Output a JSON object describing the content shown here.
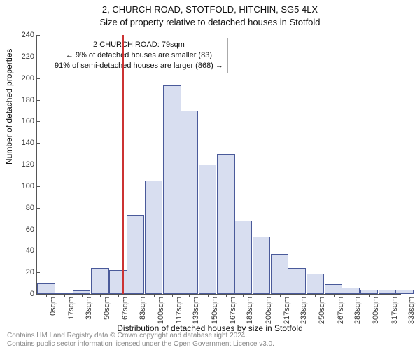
{
  "title_line1": "2, CHURCH ROAD, STOTFOLD, HITCHIN, SG5 4LX",
  "title_line2": "Size of property relative to detached houses in Stotfold",
  "histogram": {
    "type": "histogram",
    "ylabel": "Number of detached properties",
    "xlabel": "Distribution of detached houses by size in Stotfold",
    "ylim": [
      0,
      240
    ],
    "ytick_step": 20,
    "xtick_step_sqm": 16.65,
    "xlim_sqm": [
      0,
      338
    ],
    "bar_fill": "#d8def0",
    "bar_border": "#4a5a9a",
    "background": "#ffffff",
    "axis_color": "#555555",
    "tick_fontsize": 11,
    "label_fontsize": 12,
    "title_fontsize": 13,
    "bars": [
      {
        "center_sqm": 0,
        "label": "0sqm",
        "value": 10
      },
      {
        "center_sqm": 17,
        "label": "17sqm",
        "value": 1
      },
      {
        "center_sqm": 33,
        "label": "33sqm",
        "value": 3
      },
      {
        "center_sqm": 50,
        "label": "50sqm",
        "value": 24
      },
      {
        "center_sqm": 67,
        "label": "67sqm",
        "value": 22
      },
      {
        "center_sqm": 83,
        "label": "83sqm",
        "value": 73
      },
      {
        "center_sqm": 100,
        "label": "100sqm",
        "value": 105
      },
      {
        "center_sqm": 117,
        "label": "117sqm",
        "value": 193
      },
      {
        "center_sqm": 133,
        "label": "133sqm",
        "value": 170
      },
      {
        "center_sqm": 150,
        "label": "150sqm",
        "value": 120
      },
      {
        "center_sqm": 167,
        "label": "167sqm",
        "value": 130
      },
      {
        "center_sqm": 183,
        "label": "183sqm",
        "value": 68
      },
      {
        "center_sqm": 200,
        "label": "200sqm",
        "value": 53
      },
      {
        "center_sqm": 217,
        "label": "217sqm",
        "value": 37
      },
      {
        "center_sqm": 233,
        "label": "233sqm",
        "value": 24
      },
      {
        "center_sqm": 250,
        "label": "250sqm",
        "value": 19
      },
      {
        "center_sqm": 267,
        "label": "267sqm",
        "value": 9
      },
      {
        "center_sqm": 283,
        "label": "283sqm",
        "value": 6
      },
      {
        "center_sqm": 300,
        "label": "300sqm",
        "value": 4
      },
      {
        "center_sqm": 317,
        "label": "317sqm",
        "value": 4
      },
      {
        "center_sqm": 333,
        "label": "333sqm",
        "value": 4
      }
    ],
    "reference_line": {
      "sqm": 79,
      "color": "#cc3333",
      "width": 2
    }
  },
  "annotation": {
    "line1": "2 CHURCH ROAD: 79sqm",
    "line2": "← 9% of detached houses are smaller (83)",
    "line3": "91% of semi-detached houses are larger (868) →",
    "border": "#aaaaaa",
    "background": "#ffffff",
    "fontsize": 11
  },
  "footer": {
    "line1": "Contains HM Land Registry data © Crown copyright and database right 2024.",
    "line2": "Contains public sector information licensed under the Open Government Licence v3.0.",
    "color": "#888888",
    "fontsize": 10
  }
}
